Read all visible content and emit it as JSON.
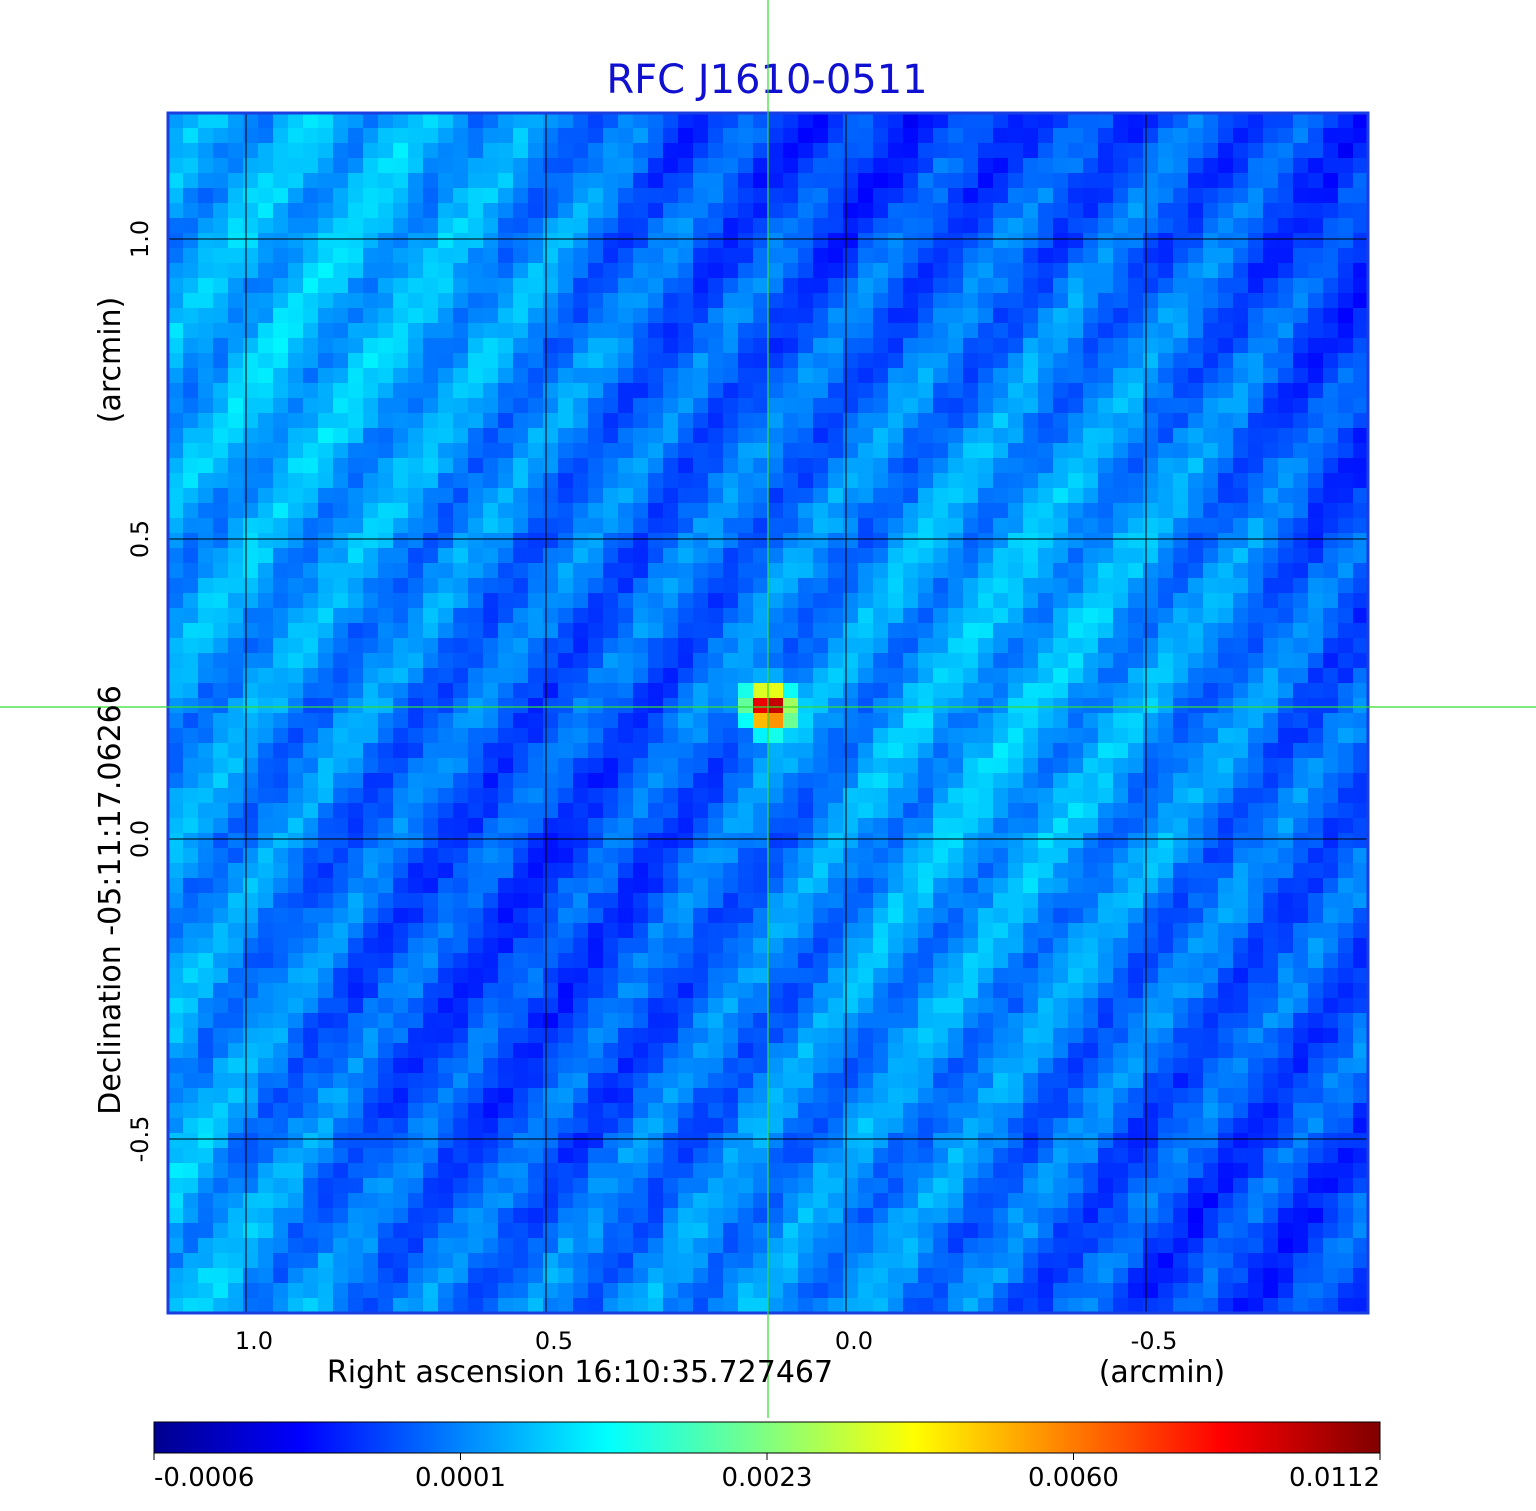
{
  "chart_data": {
    "type": "heatmap",
    "title": "RFC J1610-0511",
    "xlabel": "Right ascension  16:10:35.727467",
    "xunit": "(arcmin)",
    "ylabel": "Declination  -05:11:17.06266",
    "yunit": "(arcmin)",
    "x_range": [
      1.13,
      -0.87
    ],
    "y_range": [
      -0.79,
      1.21
    ],
    "x_ticks": [
      {
        "value": 1.0,
        "label": "1.0"
      },
      {
        "value": 0.5,
        "label": "0.5"
      },
      {
        "value": 0.0,
        "label": "0.0"
      },
      {
        "value": -0.5,
        "label": "-0.5"
      }
    ],
    "y_ticks": [
      {
        "value": 1.0,
        "label": "1.0"
      },
      {
        "value": 0.5,
        "label": "0.5"
      },
      {
        "value": 0.0,
        "label": "0.0"
      },
      {
        "value": -0.5,
        "label": "-0.5"
      }
    ],
    "grid": true,
    "crosshair": {
      "x": 0.13,
      "y": 0.22,
      "color": "#33dd33"
    },
    "source_peak": {
      "x": 0.13,
      "y": 0.22,
      "value": 0.0112
    },
    "colormap": "jet",
    "colorbar": {
      "placement": "bottom",
      "tick_labels": [
        "-0.0006",
        "0.0001",
        "0.0023",
        "0.0060",
        "0.0112"
      ]
    },
    "colors": {
      "title": "#1010d0",
      "frame": "#1a3fe0",
      "grid": "#000000"
    }
  }
}
